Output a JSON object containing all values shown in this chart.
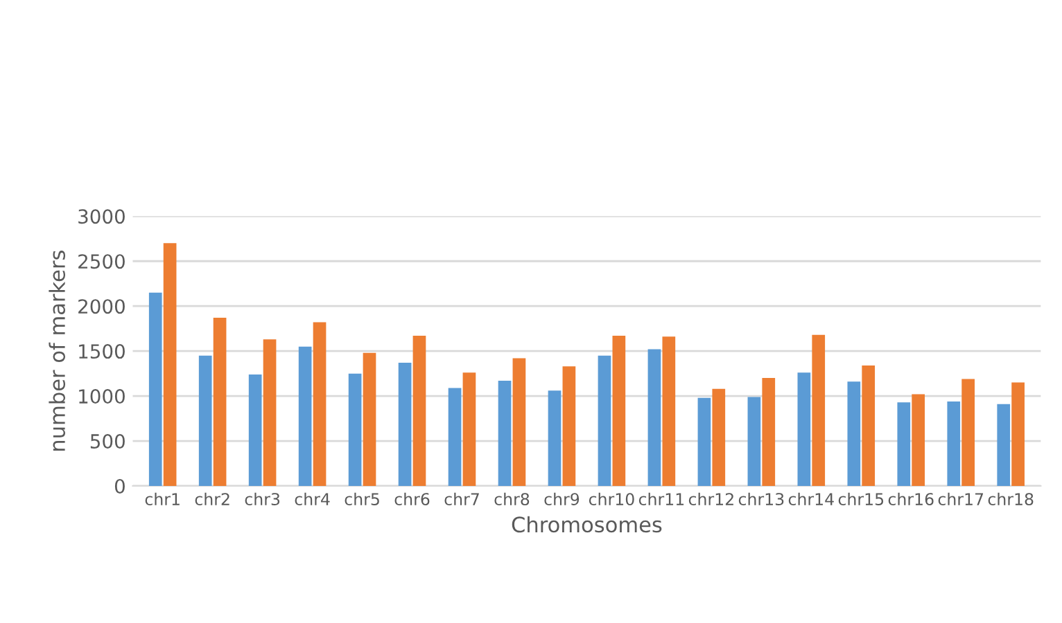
{
  "chart_data": {
    "type": "bar",
    "xlabel": "Chromosomes",
    "ylabel": "number of markers",
    "categories": [
      "chr1",
      "chr2",
      "chr3",
      "chr4",
      "chr5",
      "chr6",
      "chr7",
      "chr8",
      "chr9",
      "chr10",
      "chr11",
      "chr12",
      "chr13",
      "chr14",
      "chr15",
      "chr16",
      "chr17",
      "chr18"
    ],
    "series": [
      {
        "color": "#5b9bd5",
        "values": [
          2150,
          1450,
          1240,
          1550,
          1250,
          1370,
          1090,
          1170,
          1060,
          1450,
          1520,
          980,
          990,
          1260,
          1160,
          930,
          940,
          910
        ]
      },
      {
        "color": "#ed7d31",
        "values": [
          2700,
          1870,
          1630,
          1820,
          1480,
          1670,
          1260,
          1420,
          1330,
          1670,
          1660,
          1080,
          1200,
          1680,
          1340,
          1020,
          1190,
          1150
        ]
      }
    ],
    "ylim": [
      0,
      3000
    ],
    "yticks": [
      0,
      500,
      1000,
      1500,
      2000,
      2500,
      3000
    ],
    "grid": "y"
  }
}
